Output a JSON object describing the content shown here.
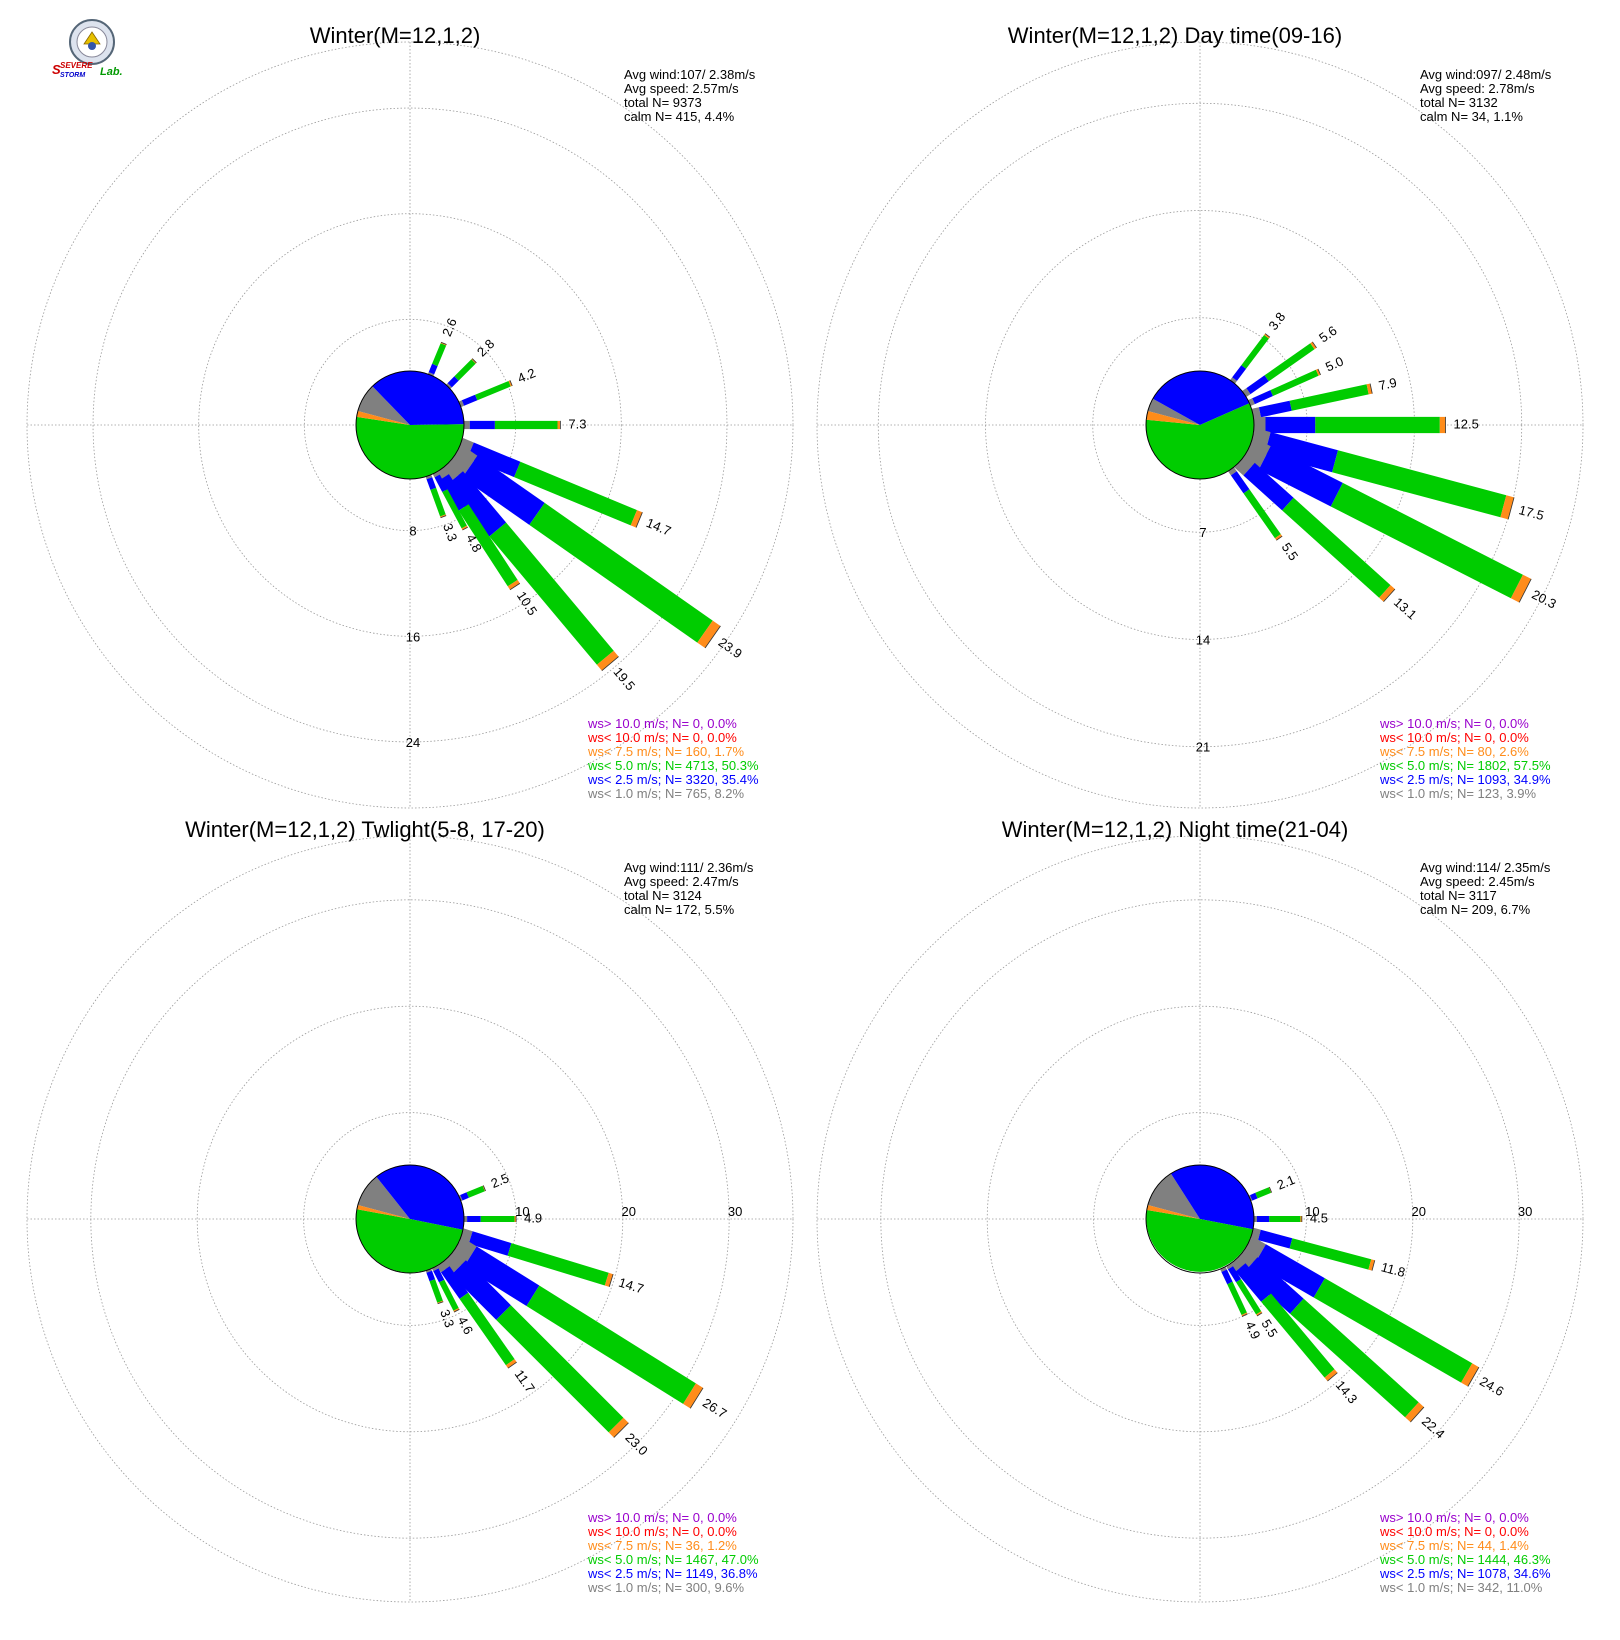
{
  "colors": {
    "ws_gt_10": "#9900cc",
    "ws_lt_10": "#ff0000",
    "ws_lt_7_5": "#ff8c1a",
    "ws_lt_5": "#00cc00",
    "ws_lt_2_5": "#0000ff",
    "ws_lt_1": "#808080",
    "grid": "#999999"
  },
  "logo": {
    "word1": "SEVERE",
    "word2": "STORM",
    "word3": "Lab."
  },
  "chart_data": [
    {
      "type": "wind-rose",
      "title": "Winter(M=12,1,2)",
      "stats": [
        "Avg wind:107/ 2.38m/s",
        "Avg speed: 2.57m/s",
        "total N=       9373",
        "calm N=     415,   4.4%"
      ],
      "ring_labels": [
        "8",
        "16",
        "24"
      ],
      "ring_values": [
        8,
        16,
        24
      ],
      "rmax": 29,
      "calm_pie": [
        {
          "class": "ws_lt_1",
          "pct": 8.2
        },
        {
          "class": "ws_lt_2_5",
          "pct": 35.4
        },
        {
          "class": "ws_lt_5",
          "pct": 50.3
        },
        {
          "class": "ws_lt_7_5",
          "pct": 1.7
        }
      ],
      "bars": [
        {
          "dir": 22.5,
          "total": 2.6,
          "label": "2.6"
        },
        {
          "dir": 45,
          "total": 2.8,
          "label": "2.8"
        },
        {
          "dir": 67.5,
          "total": 4.2,
          "label": "4.2"
        },
        {
          "dir": 90,
          "total": 7.3,
          "label": "7.3"
        },
        {
          "dir": 112.5,
          "total": 14.7,
          "label": "14.7"
        },
        {
          "dir": 125,
          "total": 23.9,
          "label": "23.9"
        },
        {
          "dir": 140,
          "total": 19.5,
          "label": "19.5"
        },
        {
          "dir": 147,
          "total": 10.5,
          "label": "10.5"
        },
        {
          "dir": 152,
          "total": 4.8,
          "label": "4.8"
        },
        {
          "dir": 160,
          "total": 3.3,
          "label": "3.3"
        }
      ],
      "legend": [
        {
          "key": "ws_gt_10",
          "text": "ws> 10.0 m/s; N=      0,  0.0%"
        },
        {
          "key": "ws_lt_10",
          "text": "ws< 10.0 m/s; N=      0,  0.0%"
        },
        {
          "key": "ws_lt_7_5",
          "text": "ws<  7.5 m/s; N=   160,  1.7%"
        },
        {
          "key": "ws_lt_5",
          "text": "ws<  5.0 m/s; N=  4713, 50.3%"
        },
        {
          "key": "ws_lt_2_5",
          "text": "ws<  2.5 m/s; N=  3320, 35.4%"
        },
        {
          "key": "ws_lt_1",
          "text": "ws<  1.0 m/s; N=   765,  8.2%"
        }
      ]
    },
    {
      "type": "wind-rose",
      "title": "Winter(M=12,1,2) Day time(09-16)",
      "stats": [
        "Avg wind:097/ 2.48m/s",
        "Avg speed: 2.78m/s",
        "total N=       3132",
        "calm N=       34,   1.1%"
      ],
      "ring_labels": [
        "7",
        "14",
        "21"
      ],
      "ring_values": [
        7,
        14,
        21
      ],
      "rmax": 25,
      "calm_pie": [
        {
          "class": "ws_lt_1",
          "pct": 3.9
        },
        {
          "class": "ws_lt_2_5",
          "pct": 34.9
        },
        {
          "class": "ws_lt_5",
          "pct": 57.5
        },
        {
          "class": "ws_lt_7_5",
          "pct": 2.6
        }
      ],
      "bars": [
        {
          "dir": 37,
          "total": 3.8,
          "label": "3.8"
        },
        {
          "dir": 55,
          "total": 5.6,
          "label": "5.6"
        },
        {
          "dir": 66,
          "total": 5.0,
          "label": "5.0"
        },
        {
          "dir": 78,
          "total": 7.9,
          "label": "7.9"
        },
        {
          "dir": 90,
          "total": 12.5,
          "label": "12.5"
        },
        {
          "dir": 105,
          "total": 17.5,
          "label": "17.5"
        },
        {
          "dir": 117,
          "total": 20.3,
          "label": "20.3"
        },
        {
          "dir": 132,
          "total": 13.1,
          "label": "13.1"
        },
        {
          "dir": 145,
          "total": 5.5,
          "label": "5.5"
        }
      ],
      "legend": [
        {
          "key": "ws_gt_10",
          "text": "ws> 10.0 m/s; N=      0,  0.0%"
        },
        {
          "key": "ws_lt_10",
          "text": "ws< 10.0 m/s; N=      0,  0.0%"
        },
        {
          "key": "ws_lt_7_5",
          "text": "ws<  7.5 m/s; N=     80,  2.6%"
        },
        {
          "key": "ws_lt_5",
          "text": "ws<  5.0 m/s; N=  1802, 57.5%"
        },
        {
          "key": "ws_lt_2_5",
          "text": "ws<  2.5 m/s; N=  1093, 34.9%"
        },
        {
          "key": "ws_lt_1",
          "text": "ws<  1.0 m/s; N=   123,  3.9%"
        }
      ]
    },
    {
      "type": "wind-rose",
      "title": "Winter(M=12,1,2) Twlight(5-8, 17-20)",
      "stats": [
        "Avg wind:111/ 2.36m/s",
        "Avg speed: 2.47m/s",
        "total N=       3124",
        "calm N=     172,   5.5%"
      ],
      "ring_labels": [
        "10",
        "20",
        "30"
      ],
      "ring_values": [
        10,
        20,
        30
      ],
      "rmax": 36,
      "calm_pie": [
        {
          "class": "ws_lt_1",
          "pct": 9.6
        },
        {
          "class": "ws_lt_2_5",
          "pct": 36.8
        },
        {
          "class": "ws_lt_5",
          "pct": 47.0
        },
        {
          "class": "ws_lt_7_5",
          "pct": 1.2
        }
      ],
      "bars": [
        {
          "dir": 67.5,
          "total": 2.5,
          "label": "2.5"
        },
        {
          "dir": 90,
          "total": 4.9,
          "label": "4.9"
        },
        {
          "dir": 107,
          "total": 14.7,
          "label": "14.7"
        },
        {
          "dir": 122,
          "total": 26.7,
          "label": "26.7"
        },
        {
          "dir": 135,
          "total": 23.0,
          "label": "23.0"
        },
        {
          "dir": 145,
          "total": 11.7,
          "label": "11.7"
        },
        {
          "dir": 153,
          "total": 4.6,
          "label": "4.6"
        },
        {
          "dir": 160,
          "total": 3.3,
          "label": "3.3"
        }
      ],
      "legend": [
        {
          "key": "ws_gt_10",
          "text": "ws> 10.0 m/s; N=      0,  0.0%"
        },
        {
          "key": "ws_lt_10",
          "text": "ws< 10.0 m/s; N=      0,  0.0%"
        },
        {
          "key": "ws_lt_7_5",
          "text": "ws<  7.5 m/s; N=     36,  1.2%"
        },
        {
          "key": "ws_lt_5",
          "text": "ws<  5.0 m/s; N=  1467, 47.0%"
        },
        {
          "key": "ws_lt_2_5",
          "text": "ws<  2.5 m/s; N=  1149, 36.8%"
        },
        {
          "key": "ws_lt_1",
          "text": "ws<  1.0 m/s; N=   300,  9.6%"
        }
      ]
    },
    {
      "type": "wind-rose",
      "title": "Winter(M=12,1,2) Night time(21-04)",
      "stats": [
        "Avg wind:114/ 2.35m/s",
        "Avg speed: 2.45m/s",
        "total N=       3117",
        "calm N=     209,   6.7%"
      ],
      "ring_labels": [
        "10",
        "20",
        "30"
      ],
      "ring_values": [
        10,
        20,
        30
      ],
      "rmax": 36,
      "calm_pie": [
        {
          "class": "ws_lt_1",
          "pct": 11.0
        },
        {
          "class": "ws_lt_2_5",
          "pct": 34.6
        },
        {
          "class": "ws_lt_5",
          "pct": 46.3
        },
        {
          "class": "ws_lt_7_5",
          "pct": 1.4
        }
      ],
      "bars": [
        {
          "dir": 67.5,
          "total": 2.1,
          "label": "2.1"
        },
        {
          "dir": 90,
          "total": 4.5,
          "label": "4.5"
        },
        {
          "dir": 105,
          "total": 11.8,
          "label": "11.8"
        },
        {
          "dir": 120,
          "total": 24.6,
          "label": "24.6"
        },
        {
          "dir": 132,
          "total": 22.4,
          "label": "22.4"
        },
        {
          "dir": 140,
          "total": 14.3,
          "label": "14.3"
        },
        {
          "dir": 148,
          "total": 5.5,
          "label": "5.5"
        },
        {
          "dir": 155,
          "total": 4.9,
          "label": "4.9"
        }
      ],
      "legend": [
        {
          "key": "ws_gt_10",
          "text": "ws> 10.0 m/s; N=      0,  0.0%"
        },
        {
          "key": "ws_lt_10",
          "text": "ws< 10.0 m/s; N=      0,  0.0%"
        },
        {
          "key": "ws_lt_7_5",
          "text": "ws<  7.5 m/s; N=     44,  1.4%"
        },
        {
          "key": "ws_lt_5",
          "text": "ws<  5.0 m/s; N=  1444, 46.3%"
        },
        {
          "key": "ws_lt_2_5",
          "text": "ws<  2.5 m/s; N=  1078, 34.6%"
        },
        {
          "key": "ws_lt_1",
          "text": "ws<  1.0 m/s; N=   342, 11.0%"
        }
      ]
    }
  ]
}
